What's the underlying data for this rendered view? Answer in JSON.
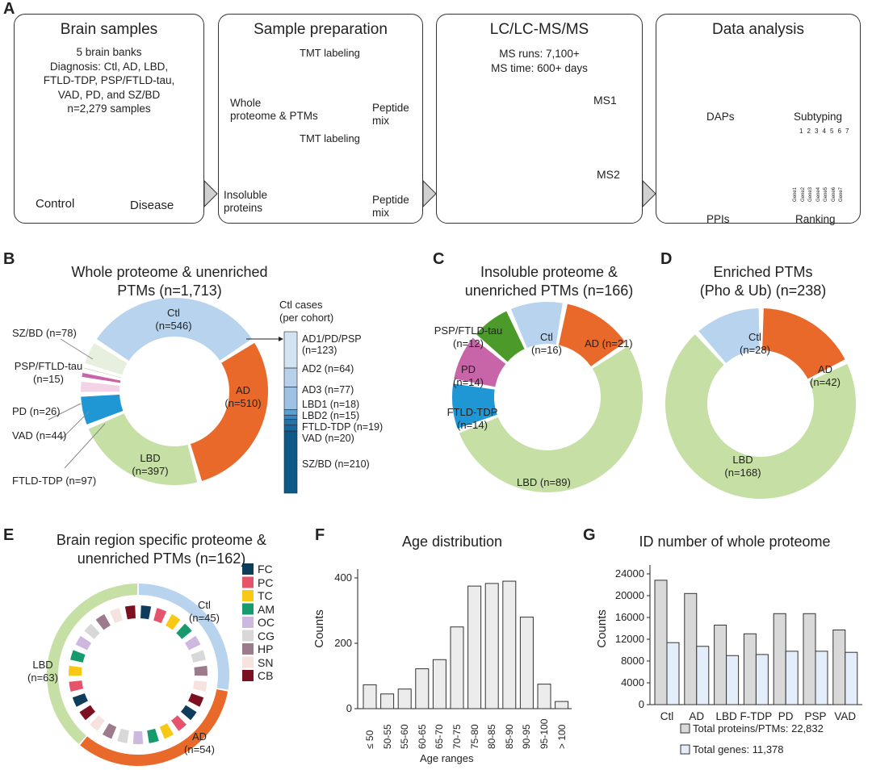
{
  "panel_labels": [
    "A",
    "B",
    "C",
    "D",
    "E",
    "F",
    "G"
  ],
  "panel_a": {
    "brain_samples": {
      "title": "Brain samples",
      "text": "5 brain banks\nDiagnosis: Ctl, AD, LBD,\nFTLD-TDP, PSP/FTLD-tau,\nVAD, PD, and SZ/BD\nn=2,279 samples",
      "control": "Control",
      "disease": "Disease"
    },
    "sample_prep": {
      "title": "Sample preparation",
      "tmt_top": "TMT labeling",
      "whole": "Whole\nproteome & PTMs",
      "peptide_top": "Peptide\nmix",
      "tmt_bottom": "TMT labeling",
      "insoluble": "Insoluble\nproteins",
      "peptide_bottom": "Peptide\nmix"
    },
    "lcms": {
      "title": "LC/LC-MS/MS",
      "text": "MS runs: 7,100+\nMS time: 600+ days",
      "ms1": "MS1",
      "ms2": "MS2"
    },
    "data_analysis": {
      "title": "Data analysis",
      "daps": "DAPs",
      "subtyping": "Subtyping",
      "ppis": "PPIs",
      "ranking": "Ranking",
      "ranking_cols": [
        "1",
        "2",
        "3",
        "4",
        "5",
        "6",
        "7"
      ],
      "ranking_genes": [
        "Gene1",
        "Gene2",
        "Gene3",
        "Gene4",
        "Gene5",
        "Gene6",
        "Gene7"
      ]
    }
  },
  "chart_data": [
    {
      "type": "pie",
      "title": "Whole proteome & unenriched\nPTMs (n=1,713)",
      "slices": [
        {
          "label": "Ctl\n(n=546)",
          "value": 546,
          "color": "#b8d3ee"
        },
        {
          "label": "AD\n(n=510)",
          "value": 510,
          "color": "#e8692a"
        },
        {
          "label": "LBD\n(n=397)",
          "value": 397,
          "color": "#c5dfa5"
        },
        {
          "label": "FTLD-TDP (n=97)",
          "value": 97,
          "color": "#1f97d4"
        },
        {
          "label": "VAD (n=44)",
          "value": 44,
          "color": "#f3d3e6"
        },
        {
          "label": "PD (n=26)",
          "value": 26,
          "color": "#c865a8"
        },
        {
          "label": "PSP/FTLD-tau\n(n=15)",
          "value": 15,
          "color": "#4c9a2a"
        },
        {
          "label": "SZ/BD (n=78)",
          "value": 78,
          "color": "#e7efdf"
        }
      ],
      "ctl_breakdown": {
        "title": "Ctl cases\n(per cohort)",
        "segments": [
          {
            "label": "AD1/PD/PSP\n(n=123)",
            "value": 123,
            "color": "#d3e3f2"
          },
          {
            "label": "AD2 (n=64)",
            "value": 64,
            "color": "#b7d1ea"
          },
          {
            "label": "AD3 (n=77)",
            "value": 77,
            "color": "#9cc1e3"
          },
          {
            "label": "LBD1 (n=18)",
            "value": 18,
            "color": "#5b9fd0"
          },
          {
            "label": "LBD2 (n=15)",
            "value": 15,
            "color": "#3a87c0"
          },
          {
            "label": "FTLD-TDP (n=19)",
            "value": 19,
            "color": "#2274aa"
          },
          {
            "label": "VAD (n=20)",
            "value": 20,
            "color": "#17689c"
          },
          {
            "label": "SZ/BD (n=210)",
            "value": 210,
            "color": "#0d5a88"
          }
        ]
      }
    },
    {
      "type": "pie",
      "title": "Insoluble proteome &\nunenriched PTMs (n=166)",
      "slices": [
        {
          "label": "Ctl\n(n=16)",
          "value": 16,
          "color": "#b8d3ee"
        },
        {
          "label": "AD (n=21)",
          "value": 21,
          "color": "#e8692a"
        },
        {
          "label": "LBD (n=89)",
          "value": 89,
          "color": "#c5dfa5"
        },
        {
          "label": "FTLD-TDP\n(n=14)",
          "value": 14,
          "color": "#1f97d4"
        },
        {
          "label": "PD\n(n=14)",
          "value": 14,
          "color": "#c865a8"
        },
        {
          "label": "PSP/FTLD-tau\n(n=12)",
          "value": 12,
          "color": "#4c9a2a"
        }
      ]
    },
    {
      "type": "pie",
      "title": "Enriched PTMs\n(Pho & Ub) (n=238)",
      "slices": [
        {
          "label": "Ctl\n(n=28)",
          "value": 28,
          "color": "#b8d3ee"
        },
        {
          "label": "AD\n(n=42)",
          "value": 42,
          "color": "#e8692a"
        },
        {
          "label": "LBD\n(n=168)",
          "value": 168,
          "color": "#c5dfa5"
        }
      ]
    },
    {
      "type": "pie",
      "title": "Brain region specific proteome &\nunenriched PTMs (n=162)",
      "slices": [
        {
          "label": "Ctl\n(n=45)",
          "value": 45,
          "color": "#b8d3ee"
        },
        {
          "label": "AD\n(n=54)",
          "value": 54,
          "color": "#e8692a"
        },
        {
          "label": "LBD\n(n=63)",
          "value": 63,
          "color": "#c5dfa5"
        }
      ],
      "regions": [
        {
          "label": "FC",
          "color": "#0e3d5c"
        },
        {
          "label": "PC",
          "color": "#e5546a"
        },
        {
          "label": "TC",
          "color": "#f7c815"
        },
        {
          "label": "AM",
          "color": "#169a6e"
        },
        {
          "label": "OC",
          "color": "#cdb9df"
        },
        {
          "label": "CG",
          "color": "#d8d8d8"
        },
        {
          "label": "HP",
          "color": "#9b7b8c"
        },
        {
          "label": "SN",
          "color": "#f6e3df"
        },
        {
          "label": "CB",
          "color": "#7d1020"
        }
      ]
    },
    {
      "type": "bar",
      "title": "Age distribution",
      "xlabel": "Age ranges",
      "ylabel": "Counts",
      "ylim": [
        0,
        420
      ],
      "yticks": [
        0,
        200,
        400
      ],
      "categories": [
        "≤ 50",
        "50-55",
        "55-60",
        "60-65",
        "65-70",
        "70-75",
        "75-80",
        "80-85",
        "85-90",
        "90-95",
        "95-100",
        "> 100"
      ],
      "values": [
        73,
        45,
        60,
        122,
        150,
        250,
        375,
        383,
        390,
        280,
        75,
        22
      ],
      "color": "#ececec"
    },
    {
      "type": "bar",
      "title": "ID number of whole proteome",
      "xlabel": "",
      "ylabel": "Counts",
      "ylim": [
        0,
        25000
      ],
      "yticks": [
        0,
        4000,
        8000,
        12000,
        16000,
        20000,
        24000
      ],
      "categories": [
        "Ctl",
        "AD",
        "LBD",
        "F-TDP",
        "PD",
        "PSP",
        "VAD"
      ],
      "series": [
        {
          "name": "Total proteins/PTMs: 22,832",
          "values": [
            22832,
            20400,
            14600,
            13000,
            16700,
            16700,
            13700
          ],
          "color": "#d9d9d9"
        },
        {
          "name": "Total genes: 11,378",
          "values": [
            11378,
            10700,
            9000,
            9200,
            9800,
            9800,
            9600
          ],
          "color": "#e3eefa"
        }
      ],
      "legend": "bottom"
    }
  ]
}
